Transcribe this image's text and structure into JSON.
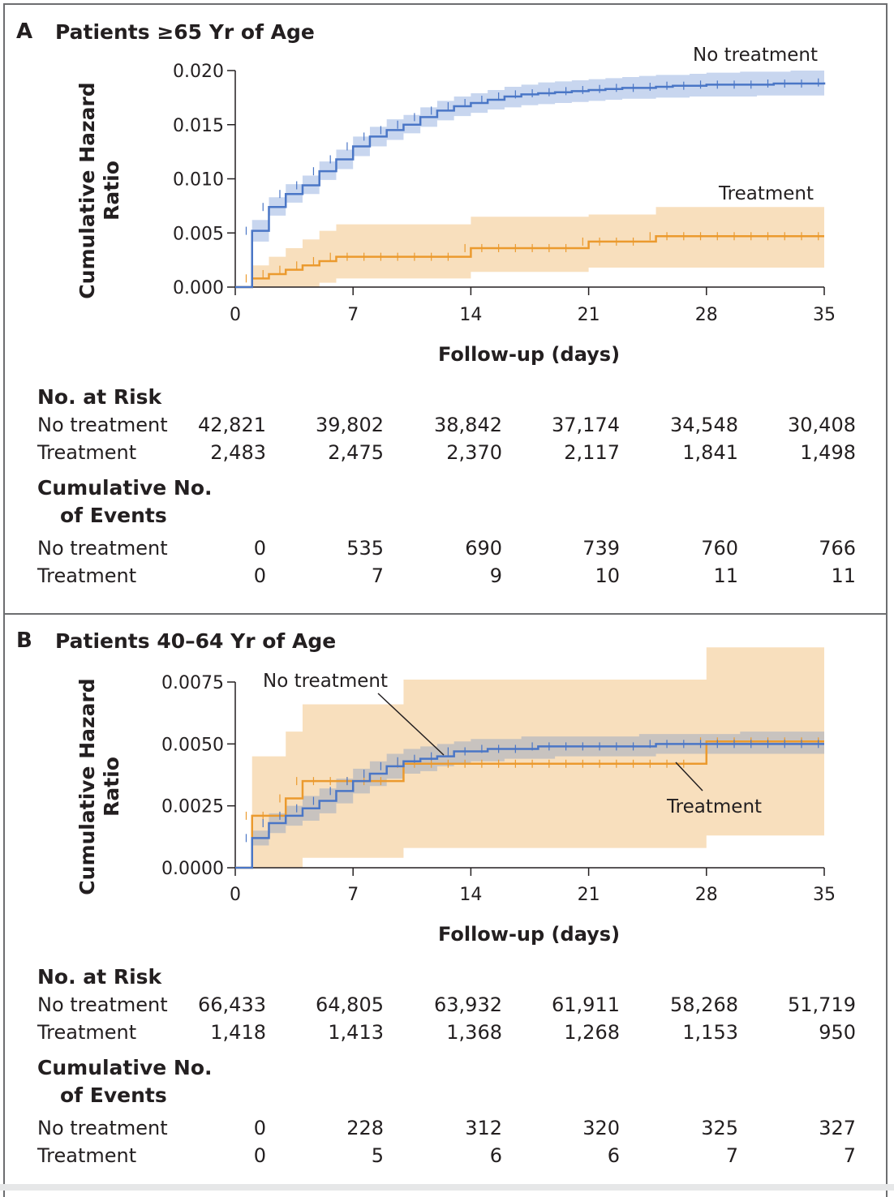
{
  "colors": {
    "no_treatment_line": "#4a76c6",
    "no_treatment_band": "#c8d6ef",
    "treatment_line": "#eb9a2e",
    "treatment_band": "#f8dfbd",
    "overlap_band": "#b8b9c0",
    "frame": "#6d6e70"
  },
  "panels": [
    {
      "letter": "A",
      "title": "Patients ≥65 Yr of Age",
      "ylabel_line1": "Cumulative Hazard",
      "ylabel_line2": "Ratio",
      "xlabel": "Follow-up (days)",
      "risk_heading": "No. at Risk",
      "events_heading_line1": "Cumulative No.",
      "events_heading_line2": "of Events",
      "row_labels": {
        "no_treatment": "No treatment",
        "treatment": "Treatment"
      },
      "risk": {
        "no_treatment": [
          "42,821",
          "39,802",
          "38,842",
          "37,174",
          "34,548",
          "30,408"
        ],
        "treatment": [
          "2,483",
          "2,475",
          "2,370",
          "2,117",
          "1,841",
          "1,498"
        ]
      },
      "events": {
        "no_treatment": [
          "0",
          "535",
          "690",
          "739",
          "760",
          "766"
        ],
        "treatment": [
          "0",
          "7",
          "9",
          "10",
          "11",
          "11"
        ]
      }
    },
    {
      "letter": "B",
      "title": "Patients 40–64 Yr of Age",
      "ylabel_line1": "Cumulative Hazard",
      "ylabel_line2": "Ratio",
      "xlabel": "Follow-up (days)",
      "risk_heading": "No. at Risk",
      "events_heading_line1": "Cumulative No.",
      "events_heading_line2": "of Events",
      "row_labels": {
        "no_treatment": "No treatment",
        "treatment": "Treatment"
      },
      "risk": {
        "no_treatment": [
          "66,433",
          "64,805",
          "63,932",
          "61,911",
          "58,268",
          "51,719"
        ],
        "treatment": [
          "1,418",
          "1,413",
          "1,368",
          "1,268",
          "1,153",
          "950"
        ]
      },
      "events": {
        "no_treatment": [
          "0",
          "228",
          "312",
          "320",
          "325",
          "327"
        ],
        "treatment": [
          "0",
          "5",
          "6",
          "6",
          "7",
          "7"
        ]
      }
    }
  ],
  "chart_data": [
    {
      "type": "line",
      "step": true,
      "title": "Patients ≥65 Yr of Age",
      "xlabel": "Follow-up (days)",
      "ylabel": "Cumulative Hazard Ratio",
      "xlim": [
        0,
        35
      ],
      "ylim": [
        0,
        0.02
      ],
      "xticks": [
        0,
        7,
        14,
        21,
        28,
        35
      ],
      "xtick_labels": [
        "0",
        "7",
        "14",
        "21",
        "28",
        "35"
      ],
      "yticks": [
        0,
        0.005,
        0.01,
        0.015,
        0.02
      ],
      "ytick_labels": [
        "0.000",
        "0.005",
        "0.010",
        "0.015",
        "0.020"
      ],
      "series": [
        {
          "name": "No treatment",
          "color": "#4a76c6",
          "x": [
            0,
            1,
            2,
            3,
            4,
            5,
            6,
            7,
            8,
            9,
            10,
            11,
            12,
            13,
            14,
            15,
            16,
            17,
            18,
            19,
            20,
            21,
            22,
            23,
            24,
            25,
            26,
            27,
            28,
            29,
            30,
            31,
            32,
            33,
            34,
            35
          ],
          "y": [
            0,
            0.0052,
            0.0074,
            0.0086,
            0.0094,
            0.0107,
            0.0118,
            0.013,
            0.0139,
            0.0145,
            0.015,
            0.0157,
            0.0163,
            0.0167,
            0.017,
            0.0173,
            0.0176,
            0.0178,
            0.0179,
            0.018,
            0.0181,
            0.0182,
            0.0183,
            0.0184,
            0.0184,
            0.0185,
            0.0186,
            0.0186,
            0.0187,
            0.0187,
            0.0187,
            0.0187,
            0.0188,
            0.0188,
            0.0188,
            0.0189
          ],
          "ci_lower": [
            0,
            0.0042,
            0.0066,
            0.0078,
            0.0086,
            0.0099,
            0.0109,
            0.0121,
            0.013,
            0.0136,
            0.0142,
            0.0148,
            0.0154,
            0.0158,
            0.0161,
            0.0164,
            0.0166,
            0.0168,
            0.0169,
            0.017,
            0.0171,
            0.0172,
            0.0173,
            0.0174,
            0.0174,
            0.0175,
            0.0175,
            0.0176,
            0.0176,
            0.0176,
            0.0176,
            0.0177,
            0.0177,
            0.0177,
            0.0177,
            0.0177
          ],
          "ci_upper": [
            0,
            0.0062,
            0.0083,
            0.0095,
            0.0103,
            0.0116,
            0.0127,
            0.0139,
            0.0148,
            0.0155,
            0.0159,
            0.0166,
            0.0172,
            0.0176,
            0.0179,
            0.0182,
            0.0185,
            0.0187,
            0.0189,
            0.019,
            0.0191,
            0.0192,
            0.0193,
            0.0194,
            0.0195,
            0.0196,
            0.0196,
            0.0197,
            0.0198,
            0.0198,
            0.0199,
            0.0199,
            0.0199,
            0.02,
            0.02,
            0.02
          ]
        },
        {
          "name": "Treatment",
          "color": "#eb9a2e",
          "x": [
            0,
            1,
            2,
            3,
            4,
            5,
            6,
            14,
            21,
            25,
            35
          ],
          "y": [
            0,
            0.0008,
            0.0012,
            0.0016,
            0.002,
            0.0024,
            0.0028,
            0.0036,
            0.0042,
            0.0047,
            0.0047
          ],
          "ci_lower": [
            0,
            0,
            0,
            0,
            0,
            0.0004,
            0.0008,
            0.0014,
            0.0018,
            0.0018,
            0.0018
          ],
          "ci_upper": [
            0,
            0.002,
            0.0028,
            0.0036,
            0.0044,
            0.0052,
            0.0058,
            0.0065,
            0.0067,
            0.0074,
            0.0074
          ]
        }
      ],
      "annotations": [
        "No treatment",
        "Treatment"
      ]
    },
    {
      "type": "line",
      "step": true,
      "title": "Patients 40–64 Yr of Age",
      "xlabel": "Follow-up (days)",
      "ylabel": "Cumulative Hazard Ratio",
      "xlim": [
        0,
        35
      ],
      "ylim": [
        0,
        0.0075
      ],
      "xticks": [
        0,
        7,
        14,
        21,
        28,
        35
      ],
      "xtick_labels": [
        "0",
        "7",
        "14",
        "21",
        "28",
        "35"
      ],
      "yticks": [
        0,
        0.0025,
        0.005,
        0.0075
      ],
      "ytick_labels": [
        "0.0000",
        "0.0025",
        "0.0050",
        "0.0075"
      ],
      "series": [
        {
          "name": "No treatment",
          "color": "#4a76c6",
          "x": [
            0,
            1,
            2,
            3,
            4,
            5,
            6,
            7,
            8,
            9,
            10,
            11,
            12,
            13,
            14,
            15,
            16,
            17,
            18,
            19,
            20,
            21,
            22,
            23,
            24,
            25,
            26,
            27,
            28,
            29,
            30,
            31,
            32,
            33,
            34,
            35
          ],
          "y": [
            0,
            0.0012,
            0.0018,
            0.0021,
            0.0024,
            0.0027,
            0.0031,
            0.0035,
            0.0038,
            0.0041,
            0.0043,
            0.0044,
            0.0045,
            0.0047,
            0.0047,
            0.0048,
            0.0048,
            0.0048,
            0.0049,
            0.0049,
            0.0049,
            0.0049,
            0.0049,
            0.0049,
            0.0049,
            0.005,
            0.005,
            0.005,
            0.005,
            0.005,
            0.005,
            0.005,
            0.005,
            0.005,
            0.005,
            0.005
          ],
          "ci_lower": [
            0,
            0.0009,
            0.0014,
            0.0017,
            0.0019,
            0.0022,
            0.0026,
            0.003,
            0.0033,
            0.0036,
            0.0038,
            0.0039,
            0.0041,
            0.0042,
            0.0043,
            0.0043,
            0.0044,
            0.0044,
            0.0044,
            0.0045,
            0.0045,
            0.0045,
            0.0045,
            0.0045,
            0.0045,
            0.0046,
            0.0046,
            0.0046,
            0.0046,
            0.0046,
            0.0046,
            0.0046,
            0.0046,
            0.0046,
            0.0046,
            0.0046
          ],
          "ci_upper": [
            0,
            0.0015,
            0.0022,
            0.0025,
            0.0029,
            0.0032,
            0.0036,
            0.004,
            0.0043,
            0.0046,
            0.0048,
            0.0049,
            0.005,
            0.0051,
            0.0052,
            0.0052,
            0.0052,
            0.0053,
            0.0053,
            0.0053,
            0.0053,
            0.0053,
            0.0053,
            0.0053,
            0.0054,
            0.0054,
            0.0054,
            0.0054,
            0.0054,
            0.0054,
            0.0055,
            0.0055,
            0.0055,
            0.0055,
            0.0055,
            0.0055
          ]
        },
        {
          "name": "Treatment",
          "color": "#eb9a2e",
          "x": [
            0,
            1,
            3,
            4,
            10,
            28,
            35
          ],
          "y": [
            0,
            0.0021,
            0.0028,
            0.0035,
            0.0042,
            0.0051,
            0.0051
          ],
          "ci_lower": [
            0,
            0,
            0,
            0.0004,
            0.0008,
            0.0013,
            0.0013
          ],
          "ci_upper": [
            0,
            0.0045,
            0.0055,
            0.0066,
            0.0076,
            0.0089,
            0.0089
          ]
        }
      ],
      "annotations": [
        "No treatment",
        "Treatment"
      ]
    }
  ]
}
